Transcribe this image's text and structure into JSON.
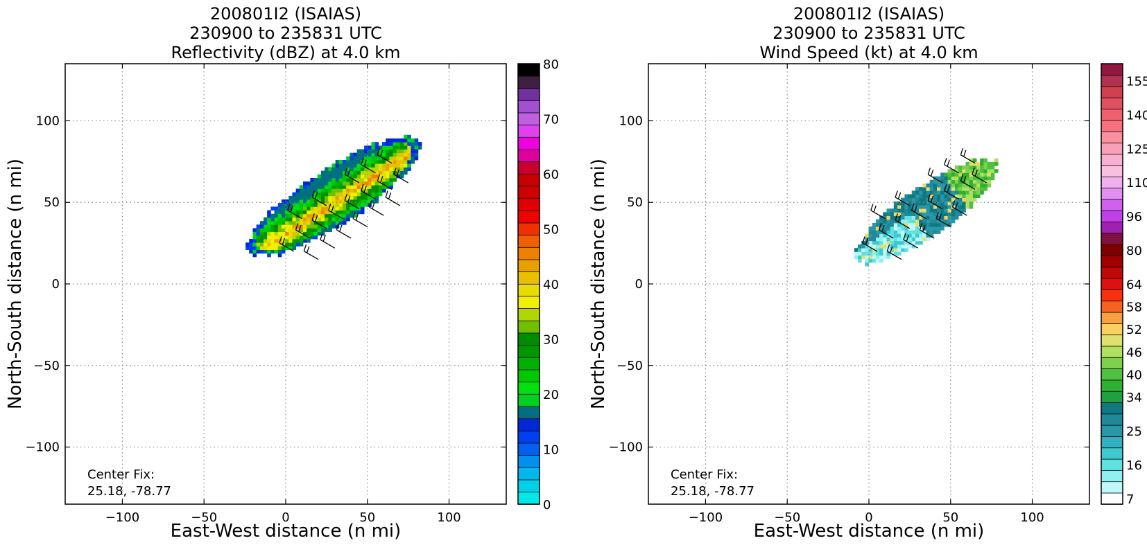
{
  "chart_data": [
    {
      "type": "heatmap",
      "title": [
        "200801I2 (ISAIAS)",
        "230900 to 235831 UTC",
        "Reflectivity (dBZ) at 4.0 km"
      ],
      "xlabel": "East-West distance (n mi)",
      "ylabel": "North-South distance (n mi)",
      "xlim": [
        -135,
        135
      ],
      "ylim": [
        -135,
        135
      ],
      "xticks": [
        "−100",
        "−50",
        "0",
        "50",
        "100"
      ],
      "xtick_values": [
        -100,
        -50,
        0,
        50,
        100
      ],
      "yticks": [
        "−100",
        "−50",
        "0",
        "50",
        "100"
      ],
      "ytick_values": [
        -100,
        -50,
        0,
        50,
        100
      ],
      "grid": true,
      "annotation": [
        "Center Fix:",
        "25.18, -78.77"
      ],
      "colorbar": {
        "range": [
          0,
          80
        ],
        "tick_labels": [
          "0",
          "10",
          "20",
          "30",
          "40",
          "50",
          "60",
          "70",
          "80"
        ],
        "tick_values": [
          0,
          10,
          20,
          30,
          40,
          50,
          60,
          70,
          80
        ],
        "colors": [
          "#00e8e8",
          "#00d0e8",
          "#00b8ec",
          "#0090f0",
          "#0060f0",
          "#0040f0",
          "#0028d8",
          "#007080",
          "#00d020",
          "#00e010",
          "#00c800",
          "#00b000",
          "#009800",
          "#008c00",
          "#70c000",
          "#b0d800",
          "#f0f000",
          "#e8dc00",
          "#e8c000",
          "#e8a000",
          "#f08000",
          "#f06000",
          "#f03000",
          "#f00000",
          "#e00000",
          "#d00000",
          "#c80000",
          "#c80030",
          "#e000a0",
          "#f000e0",
          "#e040f0",
          "#c060e0",
          "#a050d0",
          "#7030a0",
          "#402040",
          "#000000"
        ]
      },
      "field_extent": {
        "x": [
          -30,
          90
        ],
        "y": [
          0,
          107
        ]
      },
      "field_axis_deg": 33
    },
    {
      "type": "heatmap",
      "title": [
        "200801I2 (ISAIAS)",
        "230900 to 235831 UTC",
        "Wind Speed (kt) at 4.0 km"
      ],
      "xlabel": "East-West distance (n mi)",
      "ylabel": "North-South distance (n mi)",
      "xlim": [
        -135,
        135
      ],
      "ylim": [
        -135,
        135
      ],
      "xticks": [
        "−100",
        "−50",
        "0",
        "50",
        "100"
      ],
      "xtick_values": [
        -100,
        -50,
        0,
        50,
        100
      ],
      "yticks": [
        "−100",
        "−50",
        "0",
        "50",
        "100"
      ],
      "ytick_values": [
        -100,
        -50,
        0,
        50,
        100
      ],
      "grid": true,
      "annotation": [
        "Center Fix:",
        "25.18, -78.77"
      ],
      "colorbar": {
        "tick_labels": [
          "7",
          "16",
          "25",
          "34",
          "40",
          "46",
          "52",
          "58",
          "64",
          "80",
          "96",
          "110",
          "125",
          "140",
          "155"
        ],
        "tick_bin_index": [
          0,
          3,
          6,
          9,
          11,
          13,
          15,
          17,
          19,
          22,
          25,
          28,
          31,
          34,
          37
        ],
        "colors": [
          "#ffffff",
          "#c0f8f8",
          "#90f0f0",
          "#60e0e0",
          "#40c8d0",
          "#30b0c0",
          "#2898a8",
          "#208898",
          "#107880",
          "#20a040",
          "#30b030",
          "#50c040",
          "#80d050",
          "#b0e060",
          "#e0e070",
          "#f8d060",
          "#f8a040",
          "#f86020",
          "#f83010",
          "#e01010",
          "#c00808",
          "#a00000",
          "#800000",
          "#801040",
          "#a020b0",
          "#c040e8",
          "#d060f0",
          "#e090f0",
          "#f0b0f0",
          "#f8c0e0",
          "#f8b0d0",
          "#f8a0b8",
          "#f890a0",
          "#f87080",
          "#f06070",
          "#e05060",
          "#d04050",
          "#b03050",
          "#901840"
        ]
      },
      "field_extent": {
        "x": [
          -10,
          80
        ],
        "y": [
          1,
          88
        ]
      },
      "field_axis_deg": 35
    }
  ]
}
